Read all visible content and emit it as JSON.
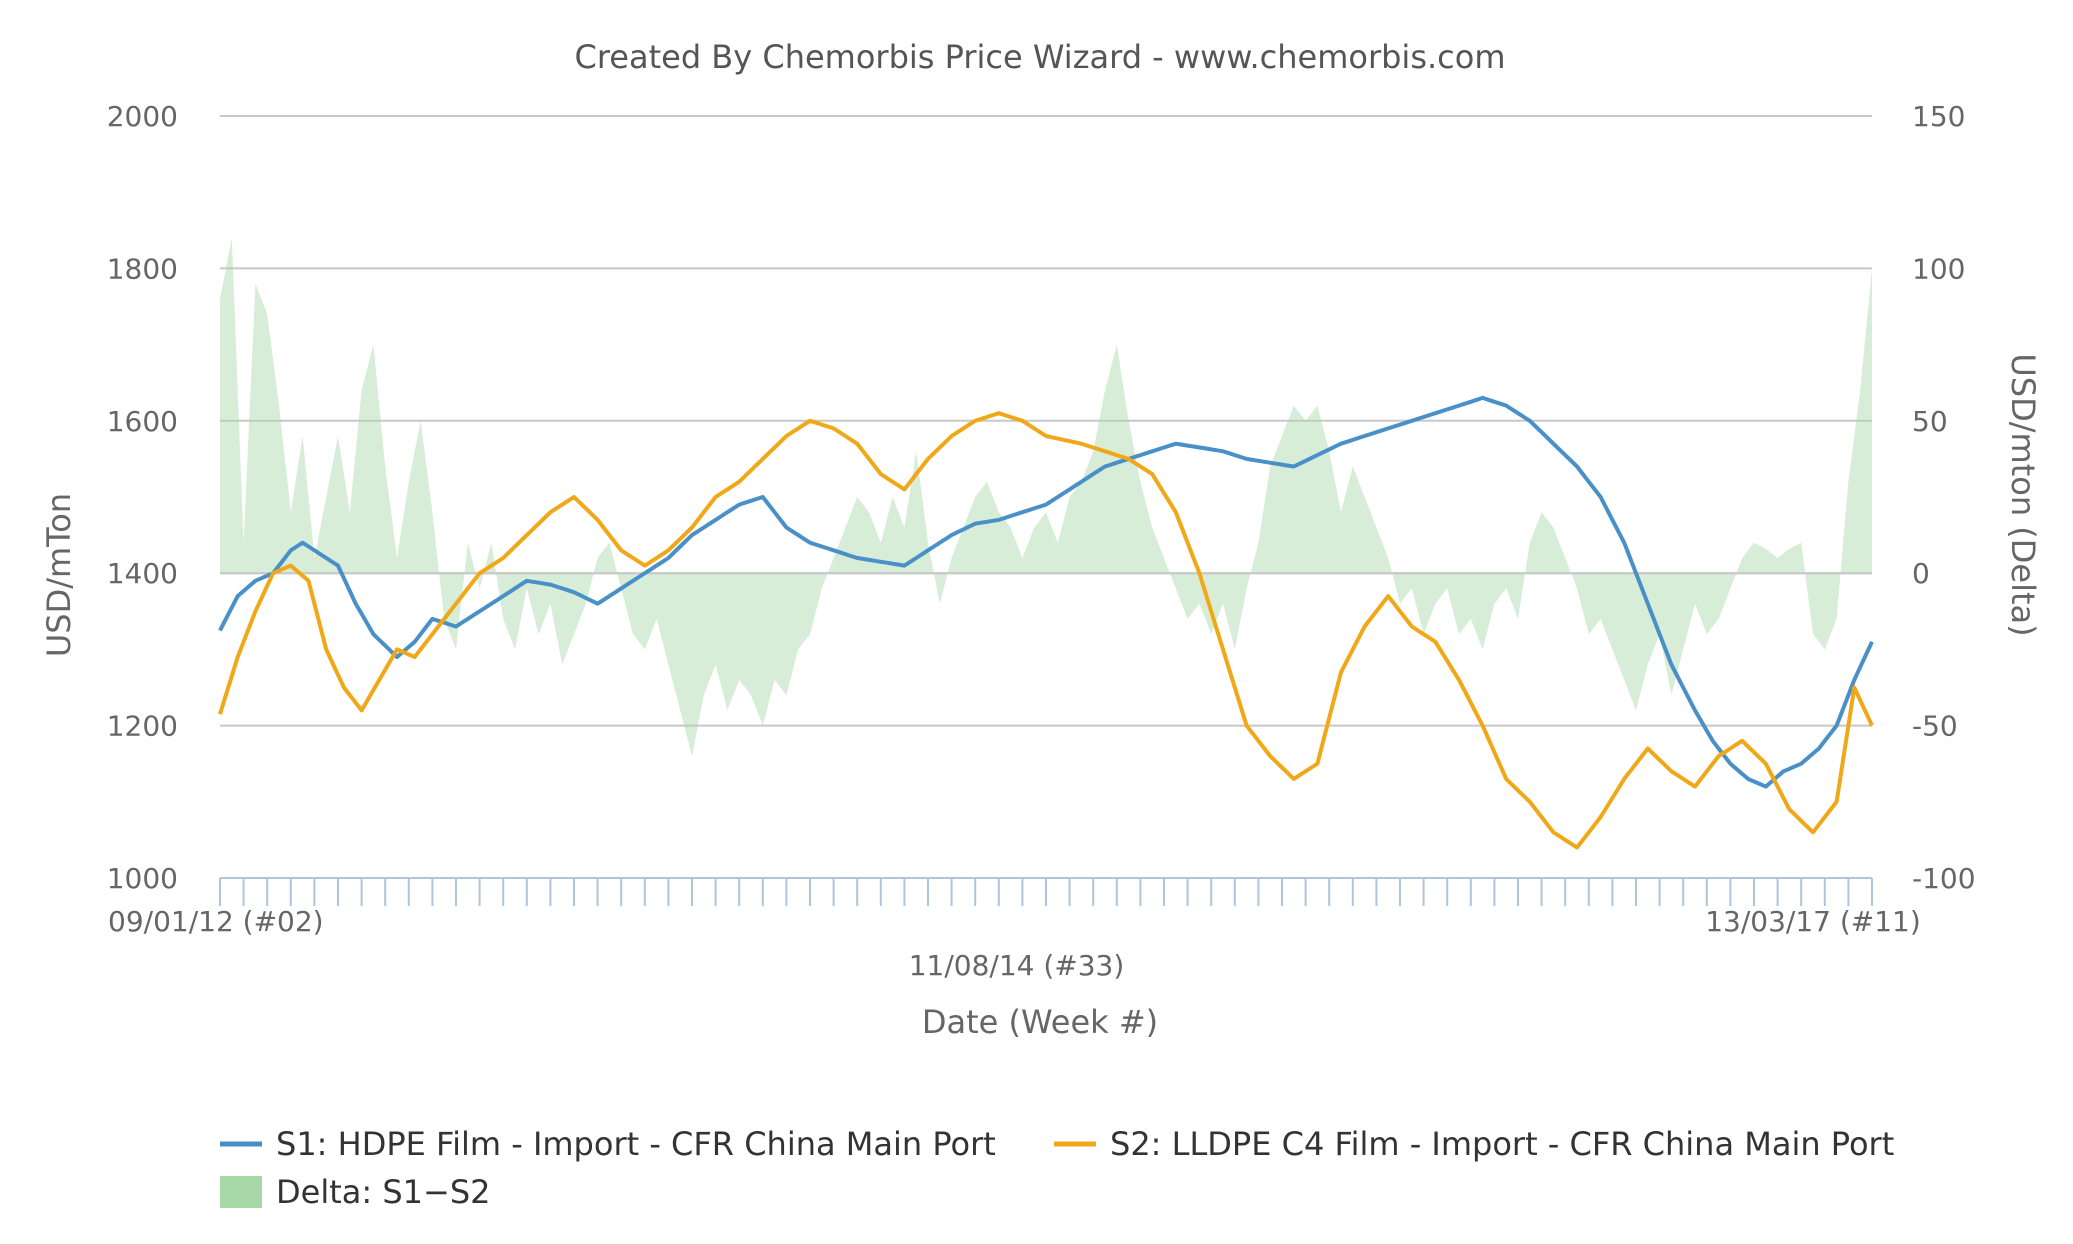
{
  "chart_data": {
    "type": "line",
    "title": "Created By Chemorbis Price Wizard - www.chemorbis.com",
    "xlabel": "Date (Week #)",
    "ylabel_left": "USD/mTon",
    "ylabel_right": "USD/mton (Delta)",
    "x_tick_labels": [
      "09/01/12 (#02)",
      "11/08/14 (#33)",
      "13/03/17 (#11)"
    ],
    "x_tick_positions": [
      0,
      135,
      270
    ],
    "x_count": 280,
    "ylim_left": [
      1000,
      2000
    ],
    "yticks_left": [
      1000,
      1200,
      1400,
      1600,
      1800,
      2000
    ],
    "ylim_right": [
      -100,
      150
    ],
    "yticks_right": [
      -100,
      -50,
      0,
      50,
      100,
      150
    ],
    "grid": true,
    "legend_position": "bottom",
    "series": [
      {
        "name": "S1: HDPE Film - Import - CFR China Main Port",
        "axis": "left",
        "kind": "line",
        "color": "#4a90c8",
        "points": [
          [
            0,
            1325
          ],
          [
            3,
            1370
          ],
          [
            6,
            1390
          ],
          [
            9,
            1400
          ],
          [
            12,
            1430
          ],
          [
            14,
            1440
          ],
          [
            17,
            1425
          ],
          [
            20,
            1410
          ],
          [
            23,
            1360
          ],
          [
            26,
            1320
          ],
          [
            30,
            1290
          ],
          [
            33,
            1310
          ],
          [
            36,
            1340
          ],
          [
            40,
            1330
          ],
          [
            44,
            1350
          ],
          [
            48,
            1370
          ],
          [
            52,
            1390
          ],
          [
            56,
            1385
          ],
          [
            60,
            1375
          ],
          [
            64,
            1360
          ],
          [
            68,
            1380
          ],
          [
            72,
            1400
          ],
          [
            76,
            1420
          ],
          [
            80,
            1450
          ],
          [
            84,
            1470
          ],
          [
            88,
            1490
          ],
          [
            92,
            1500
          ],
          [
            96,
            1460
          ],
          [
            100,
            1440
          ],
          [
            104,
            1430
          ],
          [
            108,
            1420
          ],
          [
            112,
            1415
          ],
          [
            116,
            1410
          ],
          [
            120,
            1430
          ],
          [
            124,
            1450
          ],
          [
            128,
            1465
          ],
          [
            132,
            1470
          ],
          [
            136,
            1480
          ],
          [
            140,
            1490
          ],
          [
            146,
            1520
          ],
          [
            150,
            1540
          ],
          [
            154,
            1550
          ],
          [
            158,
            1560
          ],
          [
            162,
            1570
          ],
          [
            166,
            1565
          ],
          [
            170,
            1560
          ],
          [
            174,
            1550
          ],
          [
            178,
            1545
          ],
          [
            182,
            1540
          ],
          [
            186,
            1555
          ],
          [
            190,
            1570
          ],
          [
            194,
            1580
          ],
          [
            198,
            1590
          ],
          [
            202,
            1600
          ],
          [
            206,
            1610
          ],
          [
            210,
            1620
          ],
          [
            214,
            1630
          ],
          [
            218,
            1620
          ],
          [
            222,
            1600
          ],
          [
            226,
            1570
          ],
          [
            230,
            1540
          ],
          [
            234,
            1500
          ],
          [
            238,
            1440
          ],
          [
            242,
            1360
          ],
          [
            246,
            1280
          ],
          [
            250,
            1220
          ],
          [
            253,
            1180
          ],
          [
            256,
            1150
          ],
          [
            259,
            1130
          ],
          [
            262,
            1120
          ],
          [
            265,
            1140
          ],
          [
            268,
            1150
          ],
          [
            271,
            1170
          ],
          [
            274,
            1200
          ],
          [
            277,
            1260
          ],
          [
            280,
            1310
          ]
        ]
      },
      {
        "name": "S2: LLDPE C4 Film - Import - CFR China Main Port",
        "axis": "left",
        "kind": "line",
        "color": "#f0a818",
        "points": [
          [
            0,
            1215
          ],
          [
            3,
            1290
          ],
          [
            6,
            1350
          ],
          [
            9,
            1400
          ],
          [
            12,
            1410
          ],
          [
            15,
            1390
          ],
          [
            18,
            1300
          ],
          [
            21,
            1250
          ],
          [
            24,
            1220
          ],
          [
            27,
            1260
          ],
          [
            30,
            1300
          ],
          [
            33,
            1290
          ],
          [
            36,
            1320
          ],
          [
            40,
            1360
          ],
          [
            44,
            1400
          ],
          [
            48,
            1420
          ],
          [
            52,
            1450
          ],
          [
            56,
            1480
          ],
          [
            60,
            1500
          ],
          [
            64,
            1470
          ],
          [
            68,
            1430
          ],
          [
            72,
            1410
          ],
          [
            76,
            1430
          ],
          [
            80,
            1460
          ],
          [
            84,
            1500
          ],
          [
            88,
            1520
          ],
          [
            92,
            1550
          ],
          [
            96,
            1580
          ],
          [
            100,
            1600
          ],
          [
            104,
            1590
          ],
          [
            108,
            1570
          ],
          [
            112,
            1530
          ],
          [
            116,
            1510
          ],
          [
            120,
            1550
          ],
          [
            124,
            1580
          ],
          [
            128,
            1600
          ],
          [
            132,
            1610
          ],
          [
            136,
            1600
          ],
          [
            140,
            1580
          ],
          [
            146,
            1570
          ],
          [
            150,
            1560
          ],
          [
            154,
            1550
          ],
          [
            158,
            1530
          ],
          [
            162,
            1480
          ],
          [
            166,
            1400
          ],
          [
            170,
            1300
          ],
          [
            174,
            1200
          ],
          [
            178,
            1160
          ],
          [
            182,
            1130
          ],
          [
            186,
            1150
          ],
          [
            190,
            1270
          ],
          [
            194,
            1330
          ],
          [
            198,
            1370
          ],
          [
            202,
            1330
          ],
          [
            206,
            1310
          ],
          [
            210,
            1260
          ],
          [
            214,
            1200
          ],
          [
            218,
            1130
          ],
          [
            222,
            1100
          ],
          [
            226,
            1060
          ],
          [
            230,
            1040
          ],
          [
            234,
            1080
          ],
          [
            238,
            1130
          ],
          [
            242,
            1170
          ],
          [
            246,
            1140
          ],
          [
            250,
            1120
          ],
          [
            254,
            1160
          ],
          [
            258,
            1180
          ],
          [
            262,
            1150
          ],
          [
            266,
            1090
          ],
          [
            270,
            1060
          ],
          [
            274,
            1100
          ],
          [
            277,
            1250
          ],
          [
            280,
            1200
          ]
        ]
      },
      {
        "name": "Delta: S1−S2",
        "axis": "right",
        "kind": "area",
        "color": "#a8d8a8",
        "points": [
          [
            0,
            90
          ],
          [
            2,
            110
          ],
          [
            4,
            10
          ],
          [
            6,
            95
          ],
          [
            8,
            85
          ],
          [
            10,
            55
          ],
          [
            12,
            20
          ],
          [
            14,
            45
          ],
          [
            16,
            5
          ],
          [
            18,
            25
          ],
          [
            20,
            45
          ],
          [
            22,
            20
          ],
          [
            24,
            60
          ],
          [
            26,
            75
          ],
          [
            28,
            35
          ],
          [
            30,
            5
          ],
          [
            32,
            30
          ],
          [
            34,
            50
          ],
          [
            36,
            20
          ],
          [
            38,
            -15
          ],
          [
            40,
            -25
          ],
          [
            42,
            10
          ],
          [
            44,
            -5
          ],
          [
            46,
            10
          ],
          [
            48,
            -15
          ],
          [
            50,
            -25
          ],
          [
            52,
            -5
          ],
          [
            54,
            -20
          ],
          [
            56,
            -10
          ],
          [
            58,
            -30
          ],
          [
            60,
            -20
          ],
          [
            62,
            -10
          ],
          [
            64,
            5
          ],
          [
            66,
            10
          ],
          [
            68,
            -5
          ],
          [
            70,
            -20
          ],
          [
            72,
            -25
          ],
          [
            74,
            -15
          ],
          [
            76,
            -30
          ],
          [
            78,
            -45
          ],
          [
            80,
            -60
          ],
          [
            82,
            -40
          ],
          [
            84,
            -30
          ],
          [
            86,
            -45
          ],
          [
            88,
            -35
          ],
          [
            90,
            -40
          ],
          [
            92,
            -50
          ],
          [
            94,
            -35
          ],
          [
            96,
            -40
          ],
          [
            98,
            -25
          ],
          [
            100,
            -20
          ],
          [
            102,
            -5
          ],
          [
            104,
            5
          ],
          [
            106,
            15
          ],
          [
            108,
            25
          ],
          [
            110,
            20
          ],
          [
            112,
            10
          ],
          [
            114,
            25
          ],
          [
            116,
            15
          ],
          [
            118,
            40
          ],
          [
            120,
            10
          ],
          [
            122,
            -10
          ],
          [
            124,
            5
          ],
          [
            126,
            15
          ],
          [
            128,
            25
          ],
          [
            130,
            30
          ],
          [
            132,
            20
          ],
          [
            134,
            15
          ],
          [
            136,
            5
          ],
          [
            138,
            15
          ],
          [
            140,
            20
          ],
          [
            142,
            10
          ],
          [
            144,
            25
          ],
          [
            146,
            30
          ],
          [
            148,
            40
          ],
          [
            150,
            60
          ],
          [
            152,
            75
          ],
          [
            154,
            50
          ],
          [
            156,
            30
          ],
          [
            158,
            15
          ],
          [
            160,
            5
          ],
          [
            162,
            -5
          ],
          [
            164,
            -15
          ],
          [
            166,
            -10
          ],
          [
            168,
            -20
          ],
          [
            170,
            -10
          ],
          [
            172,
            -25
          ],
          [
            174,
            -5
          ],
          [
            176,
            10
          ],
          [
            178,
            35
          ],
          [
            180,
            45
          ],
          [
            182,
            55
          ],
          [
            184,
            50
          ],
          [
            186,
            55
          ],
          [
            188,
            40
          ],
          [
            190,
            20
          ],
          [
            192,
            35
          ],
          [
            194,
            25
          ],
          [
            196,
            15
          ],
          [
            198,
            5
          ],
          [
            200,
            -10
          ],
          [
            202,
            -5
          ],
          [
            204,
            -20
          ],
          [
            206,
            -10
          ],
          [
            208,
            -5
          ],
          [
            210,
            -20
          ],
          [
            212,
            -15
          ],
          [
            214,
            -25
          ],
          [
            216,
            -10
          ],
          [
            218,
            -5
          ],
          [
            220,
            -15
          ],
          [
            222,
            10
          ],
          [
            224,
            20
          ],
          [
            226,
            15
          ],
          [
            228,
            5
          ],
          [
            230,
            -5
          ],
          [
            232,
            -20
          ],
          [
            234,
            -15
          ],
          [
            236,
            -25
          ],
          [
            238,
            -35
          ],
          [
            240,
            -45
          ],
          [
            242,
            -30
          ],
          [
            244,
            -20
          ],
          [
            246,
            -40
          ],
          [
            248,
            -25
          ],
          [
            250,
            -10
          ],
          [
            252,
            -20
          ],
          [
            254,
            -15
          ],
          [
            256,
            -5
          ],
          [
            258,
            5
          ],
          [
            260,
            10
          ],
          [
            262,
            8
          ],
          [
            264,
            5
          ],
          [
            266,
            8
          ],
          [
            268,
            10
          ],
          [
            270,
            -20
          ],
          [
            272,
            -25
          ],
          [
            274,
            -15
          ],
          [
            276,
            30
          ],
          [
            278,
            60
          ],
          [
            280,
            100
          ]
        ]
      }
    ]
  },
  "colors": {
    "s1": "#4a90c8",
    "s2": "#f0a818",
    "delta_fill": "#a8d8a8",
    "grid": "#c8c8c8",
    "axis_tick": "#b0c4de"
  }
}
